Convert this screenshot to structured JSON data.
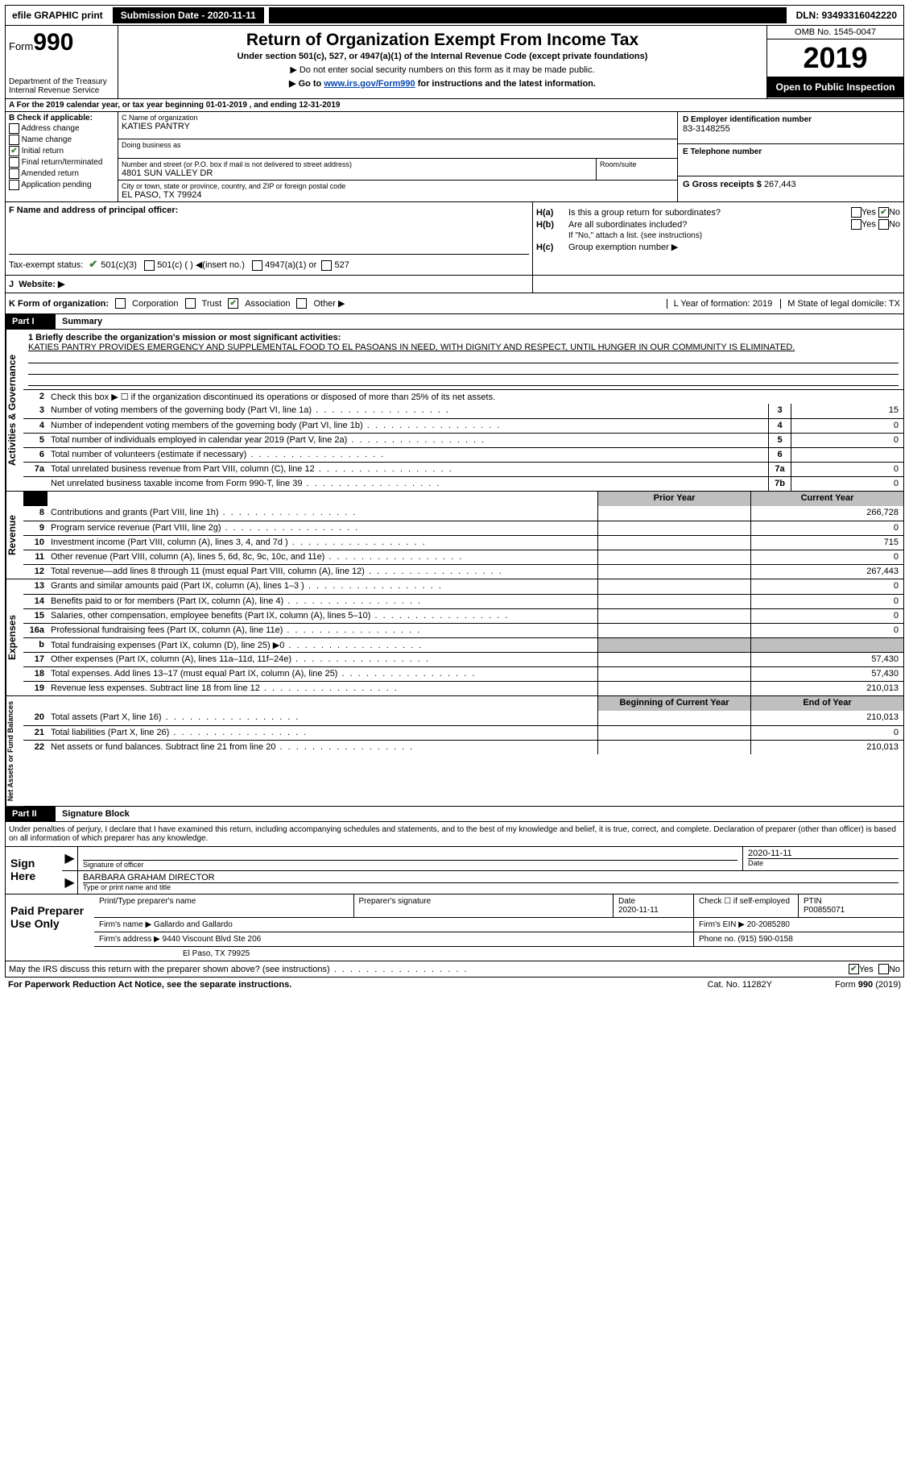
{
  "meta": {
    "dimensions": "1129x1808",
    "colors": {
      "black": "#000000",
      "white": "#ffffff",
      "grey": "#bfbfbf",
      "link": "#0645ad",
      "check_green": "#3a7a3a"
    }
  },
  "topbar": {
    "efile": "efile GRAPHIC print",
    "submission": "Submission Date - 2020-11-11",
    "dln": "DLN: 93493316042220"
  },
  "header": {
    "form_word": "Form",
    "form_num": "990",
    "dept": "Department of the Treasury\nInternal Revenue Service",
    "title": "Return of Organization Exempt From Income Tax",
    "subtitle": "Under section 501(c), 527, or 4947(a)(1) of the Internal Revenue Code (except private foundations)",
    "note1": "▶ Do not enter social security numbers on this form as it may be made public.",
    "note2_pre": "▶ Go to ",
    "note2_link": "www.irs.gov/Form990",
    "note2_post": " for instructions and the latest information.",
    "omb": "OMB No. 1545-0047",
    "year": "2019",
    "open": "Open to Public Inspection"
  },
  "period": "A For the 2019 calendar year, or tax year beginning 01-01-2019    , and ending 12-31-2019",
  "box_b": {
    "heading": "B Check if applicable:",
    "addr_change": "Address change",
    "name_change": "Name change",
    "initial_return": "Initial return",
    "initial_return_checked": true,
    "final_return": "Final return/terminated",
    "amended": "Amended return",
    "app_pending": "Application pending"
  },
  "box_c": {
    "lbl_name": "C Name of organization",
    "name": "KATIES PANTRY",
    "dba_lbl": "Doing business as",
    "addr_lbl": "Number and street (or P.O. box if mail is not delivered to street address)",
    "addr": "4801 SUN VALLEY DR",
    "room_lbl": "Room/suite",
    "city_lbl": "City or town, state or province, country, and ZIP or foreign postal code",
    "city": "EL PASO, TX  79924"
  },
  "box_d": {
    "lbl": "D Employer identification number",
    "val": "83-3148255",
    "phone_lbl": "E Telephone number",
    "gross_lbl": "G Gross receipts $",
    "gross_val": "267,443"
  },
  "box_f": "F  Name and address of principal officer:",
  "box_h": {
    "a_lbl": "H(a)",
    "a_text": "Is this a group return for subordinates?",
    "a_yes": "Yes",
    "a_no": "No",
    "a_no_checked": true,
    "b_lbl": "H(b)",
    "b_text": "Are all subordinates included?",
    "b_yes": "Yes",
    "b_no": "No",
    "note": "If \"No,\" attach a list. (see instructions)",
    "c_lbl": "H(c)",
    "c_text": "Group exemption number ▶"
  },
  "tax_status": {
    "lbl": "Tax-exempt status:",
    "s501c3": "501(c)(3)",
    "s501c3_checked": true,
    "s501c": "501(c) (   )  ◀(insert no.)",
    "s4947": "4947(a)(1) or",
    "s527": "527"
  },
  "website": {
    "lbl_j": "J",
    "lbl": "Website: ▶"
  },
  "form_org": {
    "lbl": "K Form of organization:",
    "corp": "Corporation",
    "trust": "Trust",
    "assoc": "Association",
    "assoc_checked": true,
    "other": "Other ▶",
    "l_lbl": "L Year of formation: 2019",
    "m_lbl": "M State of legal domicile: TX"
  },
  "part1": {
    "hdr": "Part I",
    "title": "Summary",
    "side_tabs": {
      "ag": "Activities & Governance",
      "rev": "Revenue",
      "exp": "Expenses",
      "net": "Net Assets or Fund Balances"
    },
    "line1_lbl": "1  Briefly describe the organization's mission or most significant activities:",
    "mission": "KATIES PANTRY PROVIDES EMERGENCY AND SUPPLEMENTAL FOOD TO EL PASOANS IN NEED, WITH DIGNITY AND RESPECT, UNTIL HUNGER IN OUR COMMUNITY IS ELIMINATED.",
    "line2": "Check this box ▶ ☐  if the organization discontinued its operations or disposed of more than 25% of its net assets.",
    "rows_ag": [
      {
        "n": "3",
        "d": "Number of voting members of the governing body (Part VI, line 1a)",
        "c": "3",
        "v": "15"
      },
      {
        "n": "4",
        "d": "Number of independent voting members of the governing body (Part VI, line 1b)",
        "c": "4",
        "v": "0"
      },
      {
        "n": "5",
        "d": "Total number of individuals employed in calendar year 2019 (Part V, line 2a)",
        "c": "5",
        "v": "0"
      },
      {
        "n": "6",
        "d": "Total number of volunteers (estimate if necessary)",
        "c": "6",
        "v": ""
      },
      {
        "n": "7a",
        "d": "Total unrelated business revenue from Part VIII, column (C), line 12",
        "c": "7a",
        "v": "0"
      },
      {
        "n": "",
        "d": "Net unrelated business taxable income from Form 990-T, line 39",
        "c": "7b",
        "v": "0"
      }
    ],
    "col_prev": "Prior Year",
    "col_curr": "Current Year",
    "rows_rev": [
      {
        "n": "8",
        "d": "Contributions and grants (Part VIII, line 1h)",
        "p": "",
        "c": "266,728"
      },
      {
        "n": "9",
        "d": "Program service revenue (Part VIII, line 2g)",
        "p": "",
        "c": "0"
      },
      {
        "n": "10",
        "d": "Investment income (Part VIII, column (A), lines 3, 4, and 7d )",
        "p": "",
        "c": "715"
      },
      {
        "n": "11",
        "d": "Other revenue (Part VIII, column (A), lines 5, 6d, 8c, 9c, 10c, and 11e)",
        "p": "",
        "c": "0"
      },
      {
        "n": "12",
        "d": "Total revenue—add lines 8 through 11 (must equal Part VIII, column (A), line 12)",
        "p": "",
        "c": "267,443"
      }
    ],
    "rows_exp": [
      {
        "n": "13",
        "d": "Grants and similar amounts paid (Part IX, column (A), lines 1–3 )",
        "p": "",
        "c": "0"
      },
      {
        "n": "14",
        "d": "Benefits paid to or for members (Part IX, column (A), line 4)",
        "p": "",
        "c": "0"
      },
      {
        "n": "15",
        "d": "Salaries, other compensation, employee benefits (Part IX, column (A), lines 5–10)",
        "p": "",
        "c": "0"
      },
      {
        "n": "16a",
        "d": "Professional fundraising fees (Part IX, column (A), line 11e)",
        "p": "",
        "c": "0"
      },
      {
        "n": "b",
        "d": "Total fundraising expenses (Part IX, column (D), line 25) ▶0",
        "p": "grey",
        "c": "grey"
      },
      {
        "n": "17",
        "d": "Other expenses (Part IX, column (A), lines 11a–11d, 11f–24e)",
        "p": "",
        "c": "57,430"
      },
      {
        "n": "18",
        "d": "Total expenses. Add lines 13–17 (must equal Part IX, column (A), line 25)",
        "p": "",
        "c": "57,430"
      },
      {
        "n": "19",
        "d": "Revenue less expenses. Subtract line 18 from line 12",
        "p": "",
        "c": "210,013"
      }
    ],
    "col_begin": "Beginning of Current Year",
    "col_end": "End of Year",
    "rows_net": [
      {
        "n": "20",
        "d": "Total assets (Part X, line 16)",
        "p": "",
        "c": "210,013"
      },
      {
        "n": "21",
        "d": "Total liabilities (Part X, line 26)",
        "p": "",
        "c": "0"
      },
      {
        "n": "22",
        "d": "Net assets or fund balances. Subtract line 21 from line 20",
        "p": "",
        "c": "210,013"
      }
    ]
  },
  "part2": {
    "hdr": "Part II",
    "title": "Signature Block",
    "declaration": "Under penalties of perjury, I declare that I have examined this return, including accompanying schedules and statements, and to the best of my knowledge and belief, it is true, correct, and complete. Declaration of preparer (other than officer) is based on all information of which preparer has any knowledge."
  },
  "sign": {
    "here": "Sign Here",
    "sig_officer": "Signature of officer",
    "date_lbl": "Date",
    "date": "2020-11-11",
    "name_title": "BARBARA GRAHAM  DIRECTOR",
    "type_lbl": "Type or print name and title"
  },
  "prep": {
    "hdr": "Paid Preparer Use Only",
    "print_lbl": "Print/Type preparer's name",
    "sig_lbl": "Preparer's signature",
    "date_lbl": "Date",
    "date": "2020-11-11",
    "check_lbl": "Check ☐ if self-employed",
    "ptin_lbl": "PTIN",
    "ptin": "P00855071",
    "firm_name_lbl": "Firm's name    ▶",
    "firm_name": "Gallardo and Gallardo",
    "firm_ein_lbl": "Firm's EIN ▶",
    "firm_ein": "20-2085280",
    "firm_addr_lbl": "Firm's address ▶",
    "firm_addr1": "9440 Viscount Blvd Ste 206",
    "firm_addr2": "El Paso, TX  79925",
    "phone_lbl": "Phone no.",
    "phone": "(915) 590-0158"
  },
  "footer": {
    "discuss": "May the IRS discuss this return with the preparer shown above? (see instructions)",
    "yes": "Yes",
    "yes_checked": true,
    "no": "No",
    "paperwork": "For Paperwork Reduction Act Notice, see the separate instructions.",
    "cat": "Cat. No. 11282Y",
    "form": "Form 990 (2019)"
  }
}
